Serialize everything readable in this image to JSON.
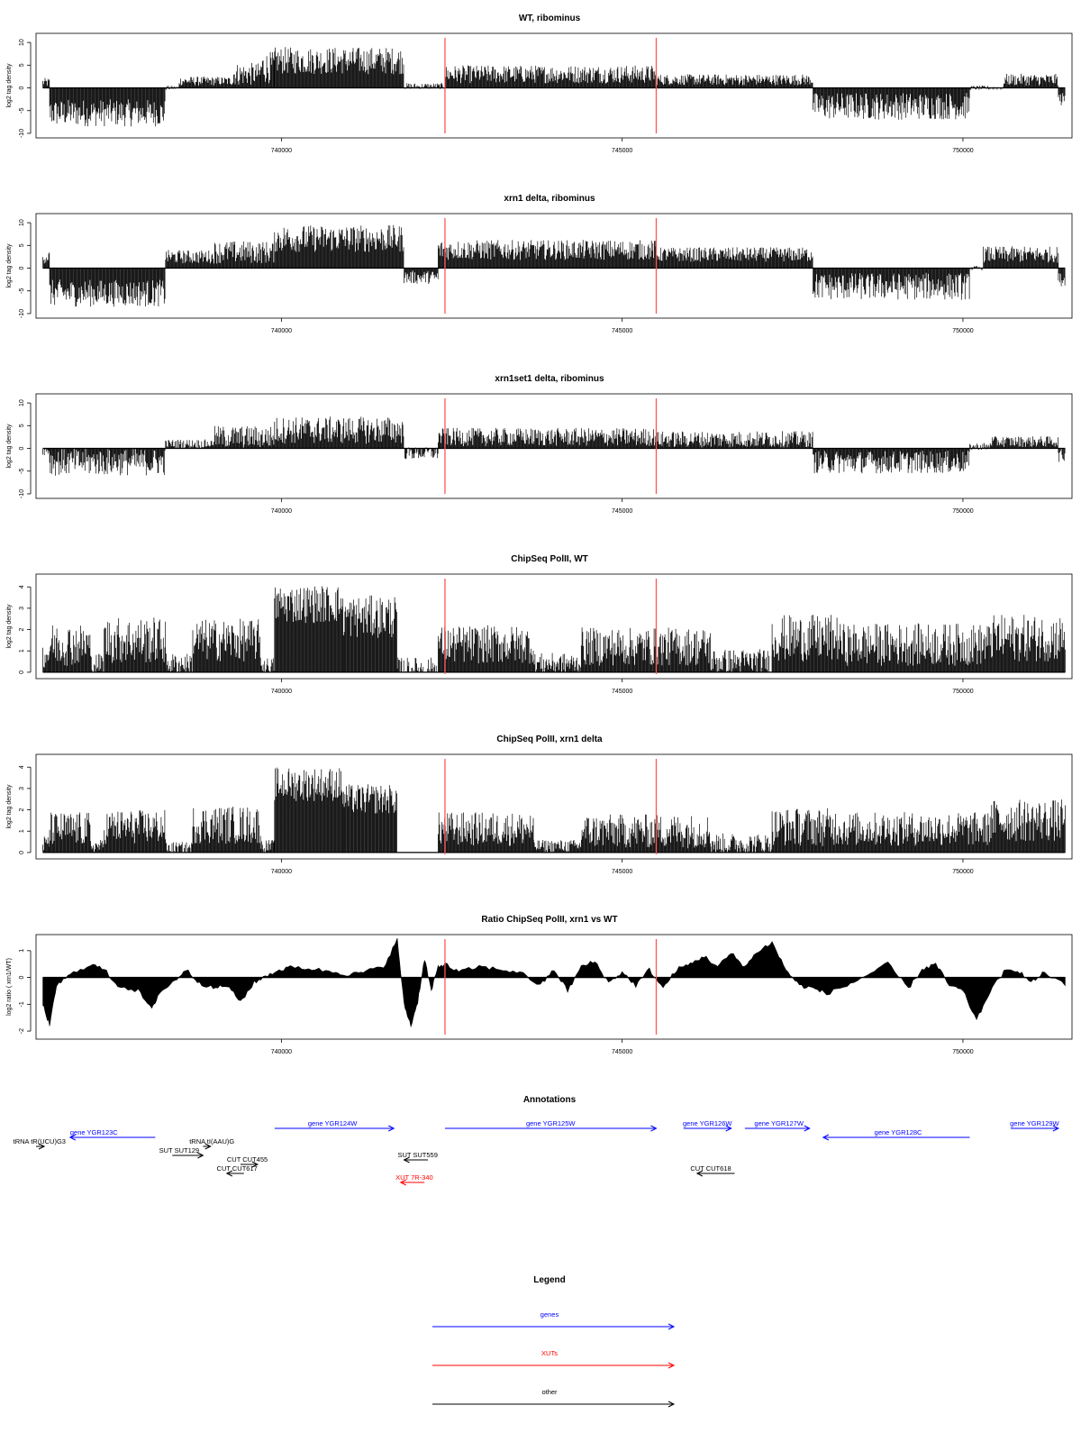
{
  "chart_data": [
    {
      "type": "bar",
      "title": "WT, ribominus",
      "ylabel": "log2 tag density",
      "ylim": [
        -11,
        12
      ],
      "yticks": [
        "-10",
        "-5",
        "0",
        "5",
        "10"
      ],
      "xlim": [
        736400,
        751600
      ],
      "xticks": [
        "740000",
        "745000",
        "750000"
      ],
      "markers_x": [
        742400,
        745500
      ],
      "segments": [
        {
          "x0": 736500,
          "x1": 736600,
          "mean": 1.2,
          "amp": 1.0
        },
        {
          "x0": 736600,
          "x1": 738300,
          "mean": -5.5,
          "amp": 3.0
        },
        {
          "x0": 738300,
          "x1": 738500,
          "mean": 0,
          "amp": 0.5
        },
        {
          "x0": 738500,
          "x1": 739300,
          "mean": 1.5,
          "amp": 1.0
        },
        {
          "x0": 739300,
          "x1": 739700,
          "mean": 3.0,
          "amp": 2.5
        },
        {
          "x0": 739700,
          "x1": 739900,
          "mean": 4.5,
          "amp": 3.5
        },
        {
          "x0": 739900,
          "x1": 741800,
          "mean": 6.0,
          "amp": 3.0
        },
        {
          "x0": 741800,
          "x1": 742400,
          "mean": 0.3,
          "amp": 0.8
        },
        {
          "x0": 742400,
          "x1": 745500,
          "mean": 3.0,
          "amp": 2.0
        },
        {
          "x0": 745500,
          "x1": 747800,
          "mean": 1.8,
          "amp": 1.2
        },
        {
          "x0": 747800,
          "x1": 750100,
          "mean": -4.0,
          "amp": 3.0
        },
        {
          "x0": 750100,
          "x1": 750600,
          "mean": 0,
          "amp": 0.5
        },
        {
          "x0": 750600,
          "x1": 751400,
          "mean": 1.8,
          "amp": 1.3
        },
        {
          "x0": 751400,
          "x1": 751500,
          "mean": -2.5,
          "amp": 1.5
        }
      ]
    },
    {
      "type": "bar",
      "title": "xrn1 delta, ribominus",
      "ylabel": "log2 tag density",
      "ylim": [
        -11,
        12
      ],
      "yticks": [
        "-10",
        "-5",
        "0",
        "5",
        "10"
      ],
      "xlim": [
        736400,
        751600
      ],
      "xticks": [
        "740000",
        "745000",
        "750000"
      ],
      "markers_x": [
        742400,
        745500
      ],
      "segments": [
        {
          "x0": 736500,
          "x1": 736600,
          "mean": 2.5,
          "amp": 1.5
        },
        {
          "x0": 736600,
          "x1": 738300,
          "mean": -5.5,
          "amp": 3.0
        },
        {
          "x0": 738300,
          "x1": 739000,
          "mean": 2.5,
          "amp": 1.5
        },
        {
          "x0": 739000,
          "x1": 739900,
          "mean": 3.5,
          "amp": 2.5
        },
        {
          "x0": 739900,
          "x1": 741800,
          "mean": 6.5,
          "amp": 3.0
        },
        {
          "x0": 741800,
          "x1": 742300,
          "mean": -2.0,
          "amp": 1.5
        },
        {
          "x0": 742300,
          "x1": 745500,
          "mean": 4.0,
          "amp": 2.2
        },
        {
          "x0": 745500,
          "x1": 747800,
          "mean": 3.0,
          "amp": 1.6
        },
        {
          "x0": 747800,
          "x1": 750100,
          "mean": -4.0,
          "amp": 3.0
        },
        {
          "x0": 750100,
          "x1": 750300,
          "mean": 0,
          "amp": 0.5
        },
        {
          "x0": 750300,
          "x1": 751400,
          "mean": 3.0,
          "amp": 1.8
        },
        {
          "x0": 751400,
          "x1": 751500,
          "mean": -2.5,
          "amp": 1.5
        }
      ]
    },
    {
      "type": "bar",
      "title": "xrn1set1 delta, ribominus",
      "ylabel": "log2 tag density",
      "ylim": [
        -11,
        12
      ],
      "yticks": [
        "-10",
        "-5",
        "0",
        "5",
        "10"
      ],
      "xlim": [
        736400,
        751600
      ],
      "xticks": [
        "740000",
        "745000",
        "750000"
      ],
      "markers_x": [
        742400,
        745500
      ],
      "segments": [
        {
          "x0": 736500,
          "x1": 736600,
          "mean": -0.5,
          "amp": 1.0
        },
        {
          "x0": 736600,
          "x1": 738300,
          "mean": -3.0,
          "amp": 3.0
        },
        {
          "x0": 738300,
          "x1": 739000,
          "mean": 1.0,
          "amp": 1.0
        },
        {
          "x0": 739000,
          "x1": 739900,
          "mean": 2.5,
          "amp": 2.5
        },
        {
          "x0": 739900,
          "x1": 741800,
          "mean": 4.0,
          "amp": 3.0
        },
        {
          "x0": 741800,
          "x1": 742300,
          "mean": -1.0,
          "amp": 1.5
        },
        {
          "x0": 742300,
          "x1": 745500,
          "mean": 2.5,
          "amp": 2.0
        },
        {
          "x0": 745500,
          "x1": 747800,
          "mean": 2.0,
          "amp": 1.8
        },
        {
          "x0": 747800,
          "x1": 750100,
          "mean": -3.0,
          "amp": 2.5
        },
        {
          "x0": 750100,
          "x1": 750400,
          "mean": 0.3,
          "amp": 1.0
        },
        {
          "x0": 750400,
          "x1": 751400,
          "mean": 1.5,
          "amp": 1.2
        },
        {
          "x0": 751400,
          "x1": 751500,
          "mean": -1.5,
          "amp": 1.5
        }
      ]
    },
    {
      "type": "bar",
      "title": "ChipSeq PolII, WT",
      "ylabel": "log2 tag density",
      "ylim": [
        -0.3,
        4.6
      ],
      "yticks": [
        "0",
        "1",
        "2",
        "3",
        "4"
      ],
      "xlim": [
        736400,
        751600
      ],
      "xticks": [
        "740000",
        "745000",
        "750000"
      ],
      "markers_x": [
        742400,
        745500
      ],
      "segments": [
        {
          "x0": 736500,
          "x1": 736600,
          "mean": 0.8,
          "amp": 0.6
        },
        {
          "x0": 736600,
          "x1": 737200,
          "mean": 1.3,
          "amp": 1.0
        },
        {
          "x0": 737200,
          "x1": 737400,
          "mean": 0.4,
          "amp": 0.5
        },
        {
          "x0": 737400,
          "x1": 738300,
          "mean": 1.5,
          "amp": 1.1
        },
        {
          "x0": 738300,
          "x1": 738700,
          "mean": 0.4,
          "amp": 0.5
        },
        {
          "x0": 738700,
          "x1": 739700,
          "mean": 1.5,
          "amp": 1.0
        },
        {
          "x0": 739700,
          "x1": 739900,
          "mean": 0.3,
          "amp": 0.4
        },
        {
          "x0": 739900,
          "x1": 740900,
          "mean": 3.2,
          "amp": 0.9
        },
        {
          "x0": 740900,
          "x1": 741700,
          "mean": 2.6,
          "amp": 1.0
        },
        {
          "x0": 741700,
          "x1": 742300,
          "mean": 0.2,
          "amp": 0.5
        },
        {
          "x0": 742300,
          "x1": 743700,
          "mean": 1.3,
          "amp": 0.9
        },
        {
          "x0": 743700,
          "x1": 744400,
          "mean": 0.4,
          "amp": 0.5
        },
        {
          "x0": 744400,
          "x1": 746300,
          "mean": 1.2,
          "amp": 0.9
        },
        {
          "x0": 746300,
          "x1": 747200,
          "mean": 0.5,
          "amp": 0.6
        },
        {
          "x0": 747200,
          "x1": 748200,
          "mean": 1.6,
          "amp": 1.1
        },
        {
          "x0": 748200,
          "x1": 750400,
          "mean": 1.3,
          "amp": 1.0
        },
        {
          "x0": 750400,
          "x1": 751500,
          "mean": 1.6,
          "amp": 1.1
        }
      ]
    },
    {
      "type": "bar",
      "title": "ChipSeq PolII, xrn1 delta",
      "ylabel": "log2 tag density",
      "ylim": [
        -0.3,
        4.6
      ],
      "yticks": [
        "0",
        "1",
        "2",
        "3",
        "4"
      ],
      "xlim": [
        736400,
        751600
      ],
      "xticks": [
        "740000",
        "745000",
        "750000"
      ],
      "markers_x": [
        742400,
        745500
      ],
      "segments": [
        {
          "x0": 736500,
          "x1": 736600,
          "mean": 0.4,
          "amp": 0.4
        },
        {
          "x0": 736600,
          "x1": 737200,
          "mean": 1.1,
          "amp": 0.8
        },
        {
          "x0": 737200,
          "x1": 737400,
          "mean": 0.3,
          "amp": 0.3
        },
        {
          "x0": 737400,
          "x1": 738300,
          "mean": 1.2,
          "amp": 0.8
        },
        {
          "x0": 738300,
          "x1": 738700,
          "mean": 0.2,
          "amp": 0.3
        },
        {
          "x0": 738700,
          "x1": 739700,
          "mean": 1.3,
          "amp": 0.9
        },
        {
          "x0": 739700,
          "x1": 739900,
          "mean": 0.3,
          "amp": 0.3
        },
        {
          "x0": 739900,
          "x1": 740900,
          "mean": 3.2,
          "amp": 0.8
        },
        {
          "x0": 740900,
          "x1": 741700,
          "mean": 2.5,
          "amp": 0.7
        },
        {
          "x0": 741700,
          "x1": 742300,
          "mean": 0,
          "amp": 0
        },
        {
          "x0": 742300,
          "x1": 743700,
          "mean": 1.1,
          "amp": 0.8
        },
        {
          "x0": 743700,
          "x1": 744400,
          "mean": 0.3,
          "amp": 0.3
        },
        {
          "x0": 744400,
          "x1": 746300,
          "mean": 1.0,
          "amp": 0.8
        },
        {
          "x0": 746300,
          "x1": 747200,
          "mean": 0.4,
          "amp": 0.5
        },
        {
          "x0": 747200,
          "x1": 748200,
          "mean": 1.2,
          "amp": 0.9
        },
        {
          "x0": 748200,
          "x1": 750400,
          "mean": 1.1,
          "amp": 0.8
        },
        {
          "x0": 750400,
          "x1": 751500,
          "mean": 1.5,
          "amp": 1.0
        }
      ]
    },
    {
      "type": "area",
      "title": "Ratio ChipSeq PolII, xrn1 vs WT",
      "ylabel": "log2 ratio ( xrn1/WT)",
      "ylim": [
        -2.3,
        1.6
      ],
      "yticks": [
        "-2",
        "-1",
        "0",
        "1"
      ],
      "xlim": [
        736400,
        751600
      ],
      "xticks": [
        "740000",
        "745000",
        "750000"
      ],
      "markers_x": [
        742400,
        745500
      ],
      "x": [
        736500,
        736600,
        736700,
        736900,
        737200,
        737400,
        737600,
        737900,
        738100,
        738200,
        738400,
        738600,
        738800,
        739000,
        739200,
        739400,
        739600,
        739800,
        740000,
        740200,
        740500,
        740800,
        741000,
        741200,
        741500,
        741700,
        741800,
        741900,
        742000,
        742100,
        742200,
        742300,
        742400,
        742600,
        742900,
        743200,
        743500,
        743800,
        744000,
        744200,
        744400,
        744600,
        744800,
        745000,
        745200,
        745400,
        745600,
        745800,
        746000,
        746200,
        746400,
        746600,
        746800,
        747000,
        747200,
        747400,
        747600,
        747800,
        748000,
        748300,
        748600,
        748900,
        749200,
        749400,
        749600,
        749800,
        750000,
        750200,
        750400,
        750600,
        750800,
        751000,
        751200,
        751500
      ],
      "y": [
        -1.0,
        -1.8,
        -0.3,
        0.1,
        0.5,
        0.3,
        -0.3,
        -0.5,
        -1.2,
        -0.6,
        -0.2,
        0.3,
        -0.2,
        -0.4,
        -0.3,
        -0.9,
        -0.2,
        0.1,
        0.3,
        0.4,
        0.3,
        0.2,
        0.1,
        0.2,
        0.4,
        1.4,
        -1.0,
        -1.8,
        -0.9,
        0.7,
        -0.5,
        0.4,
        0.5,
        0.2,
        0.4,
        0.3,
        0.2,
        -0.3,
        0.3,
        -0.5,
        0.4,
        0.6,
        -0.2,
        0.2,
        -0.3,
        0.3,
        -0.4,
        0.3,
        0.5,
        0.8,
        0.4,
        0.9,
        0.4,
        1.0,
        1.3,
        0.3,
        -0.3,
        -0.4,
        -0.6,
        -0.3,
        0.1,
        0.5,
        -0.4,
        0.3,
        0.5,
        -0.3,
        -0.5,
        -1.6,
        -0.5,
        0.2,
        0.3,
        -0.2,
        0.2,
        -0.3
      ]
    }
  ],
  "annotations": {
    "title": "Annotations",
    "xlim": [
      736400,
      751600
    ],
    "features": [
      {
        "label": "gene YGR123C",
        "color": "#0000ff",
        "x0": 738150,
        "x1": 736900,
        "row": 0,
        "label_x": 737250
      },
      {
        "label": "gene YGR124W",
        "color": "#0000ff",
        "x0": 739900,
        "x1": 741650,
        "row": -1,
        "label_x": 740750
      },
      {
        "label": "gene YGR125W",
        "color": "#0000ff",
        "x0": 742400,
        "x1": 745500,
        "row": -1,
        "label_x": 743950
      },
      {
        "label": "gene YGR126W",
        "color": "#0000ff",
        "x0": 745900,
        "x1": 746600,
        "row": -1,
        "label_x": 746250
      },
      {
        "label": "gene YGR127W",
        "color": "#0000ff",
        "x0": 746800,
        "x1": 747750,
        "row": -1,
        "label_x": 747300
      },
      {
        "label": "gene YGR128C",
        "color": "#0000ff",
        "x0": 750100,
        "x1": 747950,
        "row": 0,
        "label_x": 749050
      },
      {
        "label": "gene YGR129W",
        "color": "#0000ff",
        "x0": 750700,
        "x1": 751400,
        "row": -1,
        "label_x": 751050
      },
      {
        "label": "tRNA tR(UCU)G3",
        "color": "#000000",
        "x0": 736400,
        "x1": 736520,
        "row": 1,
        "label_x": 736450
      },
      {
        "label": "tRNA tI(AAU)G",
        "color": "#000000",
        "x0": 738850,
        "x1": 738960,
        "row": 1,
        "label_x": 738980
      },
      {
        "label": "SUT SUT129",
        "color": "#000000",
        "x0": 738400,
        "x1": 738850,
        "row": 2,
        "label_x": 738500
      },
      {
        "label": "CUT CUT455",
        "color": "#000000",
        "x0": 739400,
        "x1": 739650,
        "row": 3,
        "label_x": 739500
      },
      {
        "label": "CUT CUT617",
        "color": "#000000",
        "x0": 739450,
        "x1": 739200,
        "row": 4,
        "label_x": 739350
      },
      {
        "label": "SUT SUT559",
        "color": "#000000",
        "x0": 742150,
        "x1": 741800,
        "row": 2.5,
        "label_x": 742000
      },
      {
        "label": "XUT 7R-340",
        "color": "#ff0000",
        "x0": 742100,
        "x1": 741750,
        "row": 5,
        "label_x": 741950
      },
      {
        "label": "CUT CUT618",
        "color": "#000000",
        "x0": 746650,
        "x1": 746100,
        "row": 4,
        "label_x": 746300
      }
    ]
  },
  "legend": {
    "title": "Legend",
    "items": [
      {
        "label": "genes",
        "color": "#0000ff"
      },
      {
        "label": "XUTs",
        "color": "#ff0000"
      },
      {
        "label": "other",
        "color": "#000000"
      }
    ]
  }
}
